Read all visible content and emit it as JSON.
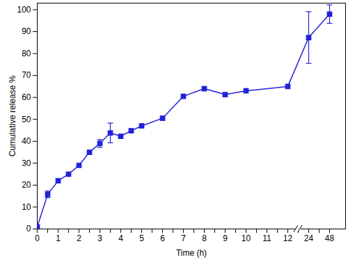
{
  "chart_data": {
    "type": "line",
    "xlabel": "Time (h)",
    "ylabel": "Cumulative release %",
    "categories": [
      "0",
      null,
      "1",
      null,
      "2",
      null,
      "3",
      null,
      "4",
      null,
      "5",
      null,
      "6",
      null,
      "7",
      null,
      "8",
      null,
      "9",
      null,
      "10",
      null,
      "11",
      null,
      "12",
      null,
      "24",
      null,
      "48"
    ],
    "values": [
      1,
      15.8,
      22,
      25,
      29,
      35,
      39,
      43.8,
      42.3,
      44.8,
      47,
      null,
      50.5,
      null,
      60.5,
      null,
      64,
      null,
      61.3,
      null,
      63,
      null,
      null,
      null,
      65,
      null,
      87.3,
      null,
      98
    ],
    "errors": [
      null,
      1.5,
      null,
      null,
      null,
      null,
      1.8,
      4.5,
      null,
      null,
      null,
      null,
      null,
      null,
      null,
      null,
      null,
      null,
      null,
      null,
      null,
      null,
      null,
      null,
      null,
      null,
      11.8,
      null,
      4.2
    ],
    "color": "#2222d8",
    "marker": "square",
    "line_style": "solid",
    "ylim": [
      0,
      103
    ],
    "yticks": [
      0,
      10,
      20,
      30,
      40,
      50,
      60,
      70,
      80,
      90,
      100
    ]
  }
}
